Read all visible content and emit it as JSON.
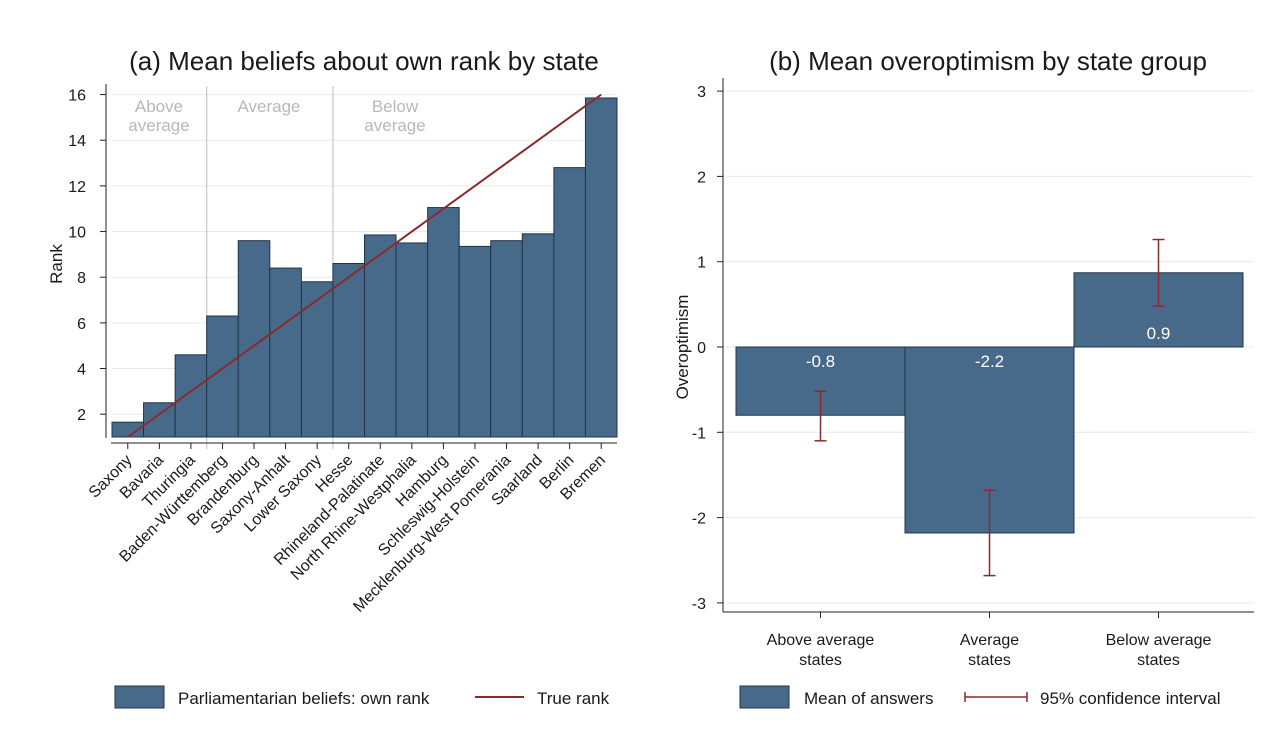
{
  "chart_data": [
    {
      "type": "bar",
      "title": "(a) Mean beliefs about own rank by state",
      "ylabel": "Rank",
      "xlabel": "",
      "ylim": [
        1,
        16.2
      ],
      "yticks": [
        2,
        4,
        6,
        8,
        10,
        12,
        14,
        16
      ],
      "grid": true,
      "legend_position": "bottom",
      "colors": {
        "bar": "#486a8a",
        "line": "#8a2a2e",
        "band_text": "#b8b8b8"
      },
      "categories": [
        "Saxony",
        "Bavaria",
        "Thuringia",
        "Baden-Württemberg",
        "Brandenburg",
        "Saxony-Anhalt",
        "Lower Saxony",
        "Hesse",
        "Rhineland-Palatinate",
        "North Rhine-Westphalia",
        "Hamburg",
        "Schleswig-Holstein",
        "Mecklenburg-West Pomerania",
        "Saarland",
        "Berlin",
        "Bremen"
      ],
      "series": [
        {
          "name": "Parliamentarian beliefs: own rank",
          "kind": "bar",
          "values": [
            1.65,
            2.5,
            4.6,
            6.3,
            9.6,
            8.4,
            7.8,
            8.6,
            9.85,
            9.5,
            11.05,
            9.35,
            9.6,
            9.9,
            12.8,
            15.85
          ]
        },
        {
          "name": "True rank",
          "kind": "line",
          "values": [
            1,
            2,
            3,
            4,
            5,
            6,
            7,
            8,
            9,
            10,
            11,
            12,
            13,
            14,
            15,
            16
          ]
        }
      ],
      "group_bands": [
        {
          "label_lines": [
            "Above",
            "average"
          ],
          "start_index": 0,
          "end_index": 2
        },
        {
          "label_lines": [
            "Average"
          ],
          "start_index": 3,
          "end_index": 6
        },
        {
          "label_lines": [
            "Below",
            "average"
          ],
          "start_index": 7,
          "end_index": 15
        }
      ]
    },
    {
      "type": "bar",
      "title": "(b) Mean overoptimism by state group",
      "ylabel": "Overoptimism",
      "xlabel": "",
      "ylim": [
        -3.2,
        3.2
      ],
      "yticks": [
        -3,
        -2,
        -1,
        0,
        1,
        2,
        3
      ],
      "grid": true,
      "legend_position": "bottom",
      "colors": {
        "bar": "#486a8a",
        "ci": "#8a2a2e"
      },
      "categories": [
        [
          "Above average",
          "states"
        ],
        [
          "Average",
          "states"
        ],
        [
          "Below average",
          "states"
        ]
      ],
      "series": [
        {
          "name": "Mean of answers",
          "kind": "bar",
          "values": [
            -0.8,
            -2.18,
            0.87
          ],
          "data_labels": [
            "-0.8",
            "-2.2",
            "0.9"
          ]
        },
        {
          "name": "95% confidence interval",
          "kind": "errorbar",
          "lower": [
            -1.1,
            -2.68,
            0.48
          ],
          "upper": [
            -0.52,
            -1.68,
            1.26
          ]
        }
      ]
    }
  ]
}
